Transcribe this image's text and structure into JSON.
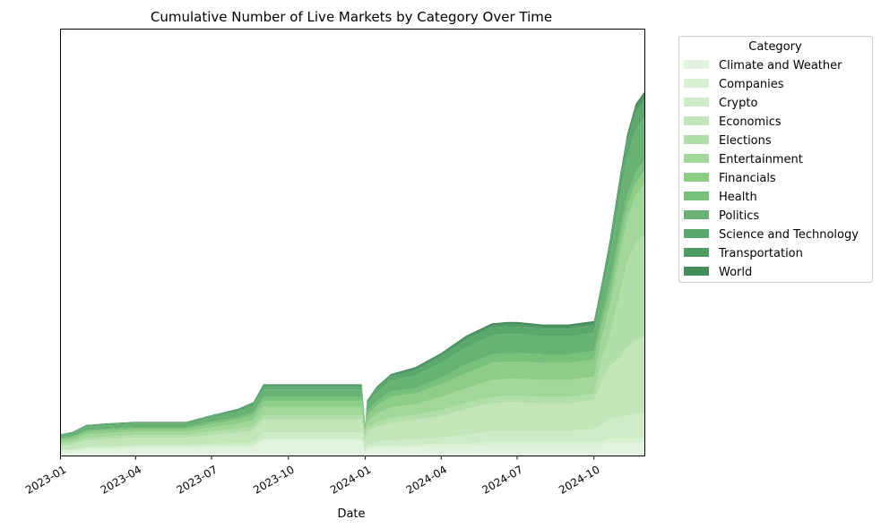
{
  "chart_data": {
    "type": "area",
    "stacked": true,
    "title": "Cumulative Number of Live Markets by Category Over Time",
    "xlabel": "Date",
    "ylabel": "",
    "y_ticks_visible": false,
    "x_range": [
      "2023-01-01",
      "2024-12-01"
    ],
    "x_ticks": [
      "2023-01",
      "2023-04",
      "2023-07",
      "2023-10",
      "2024-01",
      "2024-04",
      "2024-07",
      "2024-10"
    ],
    "ylim": [
      0,
      100
    ],
    "legend": {
      "title": "Category",
      "position": "outside-upper-right"
    },
    "x": [
      "2023-01-01",
      "2023-01-15",
      "2023-02-01",
      "2023-03-01",
      "2023-04-01",
      "2023-05-01",
      "2023-06-01",
      "2023-07-01",
      "2023-08-01",
      "2023-08-20",
      "2023-09-01",
      "2023-09-15",
      "2023-10-01",
      "2023-11-01",
      "2023-12-01",
      "2023-12-28",
      "2024-01-01",
      "2024-01-03",
      "2024-01-15",
      "2024-02-01",
      "2024-03-01",
      "2024-04-01",
      "2024-05-01",
      "2024-06-01",
      "2024-06-20",
      "2024-07-01",
      "2024-08-01",
      "2024-09-01",
      "2024-10-01",
      "2024-10-10",
      "2024-10-20",
      "2024-11-01",
      "2024-11-10",
      "2024-11-20",
      "2024-12-01"
    ],
    "series": [
      {
        "name": "Climate and Weather",
        "color": "#e1f3de",
        "values": [
          1,
          1,
          1.5,
          1.5,
          1.8,
          1.8,
          1.8,
          2,
          2,
          2,
          3.5,
          3.5,
          3.5,
          3.5,
          3.5,
          3.5,
          0.5,
          1.5,
          2,
          2,
          2.2,
          2.2,
          2.2,
          2.5,
          2.5,
          2.5,
          2.5,
          2.5,
          2.5,
          2.5,
          3,
          3,
          3,
          3,
          3
        ]
      },
      {
        "name": "Companies",
        "color": "#d9f0d3",
        "values": [
          0.3,
          0.3,
          0.3,
          0.4,
          0.4,
          0.4,
          0.4,
          0.5,
          0.5,
          0.5,
          0.5,
          0.5,
          0.5,
          0.5,
          0.5,
          0.5,
          0.2,
          0.3,
          0.4,
          0.5,
          0.5,
          0.6,
          0.7,
          0.8,
          0.8,
          0.8,
          0.8,
          0.8,
          0.8,
          0.8,
          1,
          1,
          1,
          1,
          1
        ]
      },
      {
        "name": "Crypto",
        "color": "#cdebc6",
        "values": [
          0.2,
          0.2,
          0.3,
          0.3,
          0.3,
          0.3,
          0.3,
          0.4,
          0.5,
          0.6,
          1.5,
          1.5,
          1.5,
          1.5,
          1.5,
          1.5,
          0.2,
          0.8,
          1,
          1.2,
          1.2,
          1.5,
          2,
          2.5,
          2.5,
          2.5,
          2.5,
          2.5,
          3,
          4,
          5,
          5,
          5.5,
          6,
          6
        ]
      },
      {
        "name": "Economics",
        "color": "#c2e6ba",
        "values": [
          1,
          1.2,
          1.5,
          1.8,
          1.8,
          1.8,
          1.8,
          2,
          2.5,
          2.8,
          3,
          3,
          3,
          3,
          3,
          3,
          2,
          3,
          3.5,
          4,
          4.5,
          5,
          6,
          6.5,
          6.8,
          6.8,
          6.5,
          6.5,
          6.8,
          10,
          12,
          14,
          16,
          17,
          18
        ]
      },
      {
        "name": "Elections",
        "color": "#b2dfa9",
        "values": [
          0.5,
          0.5,
          0.6,
          0.6,
          0.6,
          0.6,
          0.6,
          0.8,
          0.8,
          1,
          1,
          1,
          1,
          1,
          1,
          1,
          0.5,
          0.8,
          1,
          1.2,
          1.2,
          1.5,
          1.5,
          1.5,
          1.5,
          1.5,
          1.5,
          1.5,
          1.5,
          5,
          7,
          15,
          20,
          23,
          24
        ]
      },
      {
        "name": "Entertainment",
        "color": "#a1d799",
        "values": [
          0.5,
          0.6,
          0.8,
          0.8,
          0.8,
          0.8,
          0.8,
          1,
          1.2,
          1.5,
          2,
          2,
          2,
          2,
          2,
          2,
          1,
          1.5,
          2,
          2.5,
          2.5,
          3,
          3.5,
          4,
          4,
          4,
          4,
          4,
          4,
          5,
          7,
          9,
          10,
          11,
          12
        ]
      },
      {
        "name": "Financials",
        "color": "#8dcd88",
        "values": [
          0.4,
          0.5,
          0.6,
          0.6,
          0.6,
          0.6,
          0.6,
          0.8,
          1,
          1.2,
          1.5,
          1.5,
          1.5,
          1.5,
          1.5,
          1.5,
          1,
          1.5,
          2,
          2.5,
          2.5,
          3,
          3.5,
          4,
          4,
          4,
          4,
          4,
          4,
          3,
          3,
          3,
          3,
          3,
          3
        ]
      },
      {
        "name": "Health",
        "color": "#78c07c",
        "values": [
          0.3,
          0.3,
          0.4,
          0.4,
          0.4,
          0.4,
          0.4,
          0.5,
          0.5,
          0.6,
          0.8,
          0.8,
          0.8,
          0.8,
          0.8,
          0.8,
          0.5,
          0.8,
          1,
          1.2,
          1.2,
          1.5,
          2,
          2,
          2,
          2,
          2,
          2,
          2,
          2,
          2.5,
          2.5,
          2.5,
          2.5,
          2.5
        ]
      },
      {
        "name": "Politics",
        "color": "#68b374",
        "values": [
          0.5,
          0.6,
          0.8,
          0.8,
          0.8,
          0.8,
          0.8,
          1,
          1.2,
          1.5,
          1.8,
          1.8,
          1.8,
          1.8,
          1.8,
          1.8,
          1,
          1.8,
          2,
          2.5,
          3,
          3.5,
          4,
          4.5,
          4.5,
          4.5,
          4.2,
          4.2,
          4.2,
          5,
          6,
          8,
          9,
          10,
          10
        ]
      },
      {
        "name": "Science and Technology",
        "color": "#5aa86c",
        "values": [
          0.2,
          0.2,
          0.3,
          0.3,
          0.3,
          0.3,
          0.3,
          0.4,
          0.4,
          0.5,
          0.6,
          0.6,
          0.6,
          0.6,
          0.6,
          0.6,
          0.3,
          0.6,
          0.8,
          1,
          1.2,
          1.5,
          1.8,
          1.8,
          1.8,
          1.8,
          1.8,
          1.8,
          1.8,
          2,
          2.5,
          3,
          3.5,
          4,
          4
        ]
      },
      {
        "name": "Transportation",
        "color": "#4e9a63",
        "values": [
          0.1,
          0.1,
          0.1,
          0.1,
          0.1,
          0.1,
          0.1,
          0.1,
          0.2,
          0.2,
          0.3,
          0.3,
          0.3,
          0.3,
          0.3,
          0.3,
          0.1,
          0.2,
          0.3,
          0.3,
          0.4,
          0.4,
          0.5,
          0.5,
          0.5,
          0.5,
          0.5,
          0.5,
          0.5,
          0.5,
          0.8,
          1,
          1,
          1,
          1
        ]
      },
      {
        "name": "World",
        "color": "#468b5c",
        "values": [
          0.1,
          0.1,
          0.1,
          0.1,
          0.1,
          0.1,
          0.1,
          0.1,
          0.2,
          0.2,
          0.3,
          0.3,
          0.3,
          0.3,
          0.3,
          0.3,
          0.1,
          0.2,
          0.3,
          0.3,
          0.4,
          0.4,
          0.5,
          0.5,
          0.5,
          0.5,
          0.5,
          0.5,
          0.5,
          0.5,
          0.8,
          1,
          1,
          1,
          1
        ]
      }
    ]
  }
}
